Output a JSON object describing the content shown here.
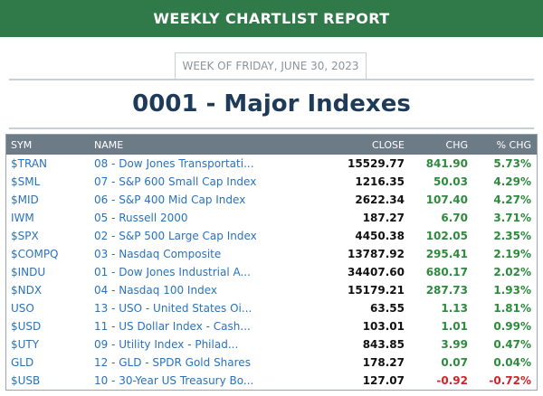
{
  "header": {
    "banner_title": "WEEKLY CHARTLIST REPORT"
  },
  "week_label": "WEEK OF FRIDAY, JUNE 30, 2023",
  "page_title": "0001 - Major Indexes",
  "table": {
    "columns": {
      "sym": "SYM",
      "name": "NAME",
      "close": "CLOSE",
      "chg": "CHG",
      "pct": "% CHG"
    },
    "rows": [
      {
        "sym": "$TRAN",
        "name": "08 - Dow Jones Transportati...",
        "close": "15529.77",
        "chg": "841.90",
        "pct": "5.73%",
        "direction": "up"
      },
      {
        "sym": "$SML",
        "name": "07 - S&P 600 Small Cap Index",
        "close": "1216.35",
        "chg": "50.03",
        "pct": "4.29%",
        "direction": "up"
      },
      {
        "sym": "$MID",
        "name": "06 - S&P 400 Mid Cap Index",
        "close": "2622.34",
        "chg": "107.40",
        "pct": "4.27%",
        "direction": "up"
      },
      {
        "sym": "IWM",
        "name": "05 - Russell 2000",
        "close": "187.27",
        "chg": "6.70",
        "pct": "3.71%",
        "direction": "up"
      },
      {
        "sym": "$SPX",
        "name": "02 - S&P 500 Large Cap Index",
        "close": "4450.38",
        "chg": "102.05",
        "pct": "2.35%",
        "direction": "up"
      },
      {
        "sym": "$COMPQ",
        "name": "03 - Nasdaq Composite",
        "close": "13787.92",
        "chg": "295.41",
        "pct": "2.19%",
        "direction": "up"
      },
      {
        "sym": "$INDU",
        "name": "01 - Dow Jones Industrial A...",
        "close": "34407.60",
        "chg": "680.17",
        "pct": "2.02%",
        "direction": "up"
      },
      {
        "sym": "$NDX",
        "name": "04 - Nasdaq 100 Index",
        "close": "15179.21",
        "chg": "287.73",
        "pct": "1.93%",
        "direction": "up"
      },
      {
        "sym": "USO",
        "name": "13 - USO - United States Oi...",
        "close": "63.55",
        "chg": "1.13",
        "pct": "1.81%",
        "direction": "up"
      },
      {
        "sym": "$USD",
        "name": "11 - US Dollar Index - Cash...",
        "close": "103.01",
        "chg": "1.01",
        "pct": "0.99%",
        "direction": "up"
      },
      {
        "sym": "$UTY",
        "name": "09 - Utility Index - Philad...",
        "close": "843.85",
        "chg": "3.99",
        "pct": "0.47%",
        "direction": "up"
      },
      {
        "sym": "GLD",
        "name": "12 - GLD - SPDR Gold Shares",
        "close": "178.27",
        "chg": "0.07",
        "pct": "0.04%",
        "direction": "up"
      },
      {
        "sym": "$USB",
        "name": "10 - 30-Year US Treasury Bo...",
        "close": "127.07",
        "chg": "-0.92",
        "pct": "-0.72%",
        "direction": "down"
      }
    ]
  },
  "colors": {
    "banner": "#2f7a48",
    "title": "#1f3b5a",
    "header_row": "#6d7b87",
    "link": "#2a73b8",
    "positive": "#2e8b3e",
    "negative": "#d0242a"
  }
}
